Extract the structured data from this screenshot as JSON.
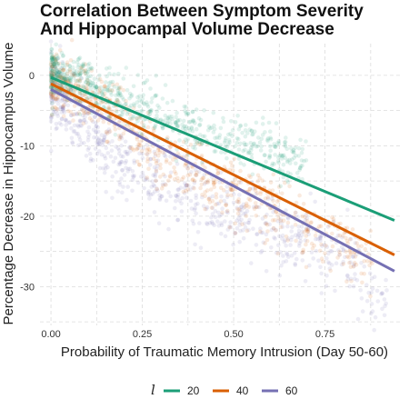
{
  "chart_data": {
    "type": "scatter",
    "title_lines": [
      "Correlation Between Symptom Severity",
      "And Hippocampal Volume Decrease"
    ],
    "xlabel": "Probability of Traumatic Memory Intrusion (Day 50-60)",
    "ylabel": "Percentage Decrease in Hippocampus Volume",
    "xlim": [
      -0.03,
      0.96
    ],
    "ylim": [
      -35.5,
      4.5
    ],
    "x_ticks": [
      0,
      0.25,
      0.5,
      0.75
    ],
    "x_tick_labels": [
      "0.00",
      "0.25",
      "0.50",
      "0.75"
    ],
    "y_ticks": [
      0,
      -10,
      -20,
      -30
    ],
    "y_tick_labels": [
      "0",
      "-10",
      "-20",
      "-30"
    ],
    "grid": true,
    "legend": {
      "title": "l",
      "position": "bottom"
    },
    "series": [
      {
        "name": "20",
        "color": "#1b9e77",
        "fit_line": {
          "x": [
            0.0,
            0.94
          ],
          "y": [
            -0.3,
            -20.6
          ]
        },
        "point_trend": {
          "x": [
            0.0,
            0.1,
            0.2,
            0.3,
            0.4,
            0.5,
            0.6,
            0.7
          ],
          "y": [
            0.5,
            -1.5,
            -3.5,
            -6.0,
            -8.0,
            -9.5,
            -11.0,
            -13.0
          ]
        },
        "point_spread": 1.8
      },
      {
        "name": "40",
        "color": "#d95f02",
        "fit_line": {
          "x": [
            0.0,
            0.94
          ],
          "y": [
            -1.2,
            -25.5
          ]
        },
        "point_trend": {
          "x": [
            0.0,
            0.1,
            0.2,
            0.3,
            0.4,
            0.5,
            0.6,
            0.7,
            0.8,
            0.88
          ],
          "y": [
            -0.5,
            -3.0,
            -7.0,
            -12.0,
            -14.5,
            -16.0,
            -19.0,
            -21.5,
            -24.0,
            -27.0
          ]
        },
        "point_spread": 2.2
      },
      {
        "name": "60",
        "color": "#7570b3",
        "fit_line": {
          "x": [
            0.0,
            0.94
          ],
          "y": [
            -2.0,
            -27.8
          ]
        },
        "point_trend": {
          "x": [
            0.0,
            0.1,
            0.2,
            0.3,
            0.4,
            0.5,
            0.6,
            0.7,
            0.8,
            0.86,
            0.92
          ],
          "y": [
            -2.0,
            -8.0,
            -13.0,
            -15.0,
            -17.0,
            -19.5,
            -22.0,
            -23.5,
            -25.5,
            -29.5,
            -32.0
          ]
        },
        "point_spread": 2.5
      }
    ]
  }
}
